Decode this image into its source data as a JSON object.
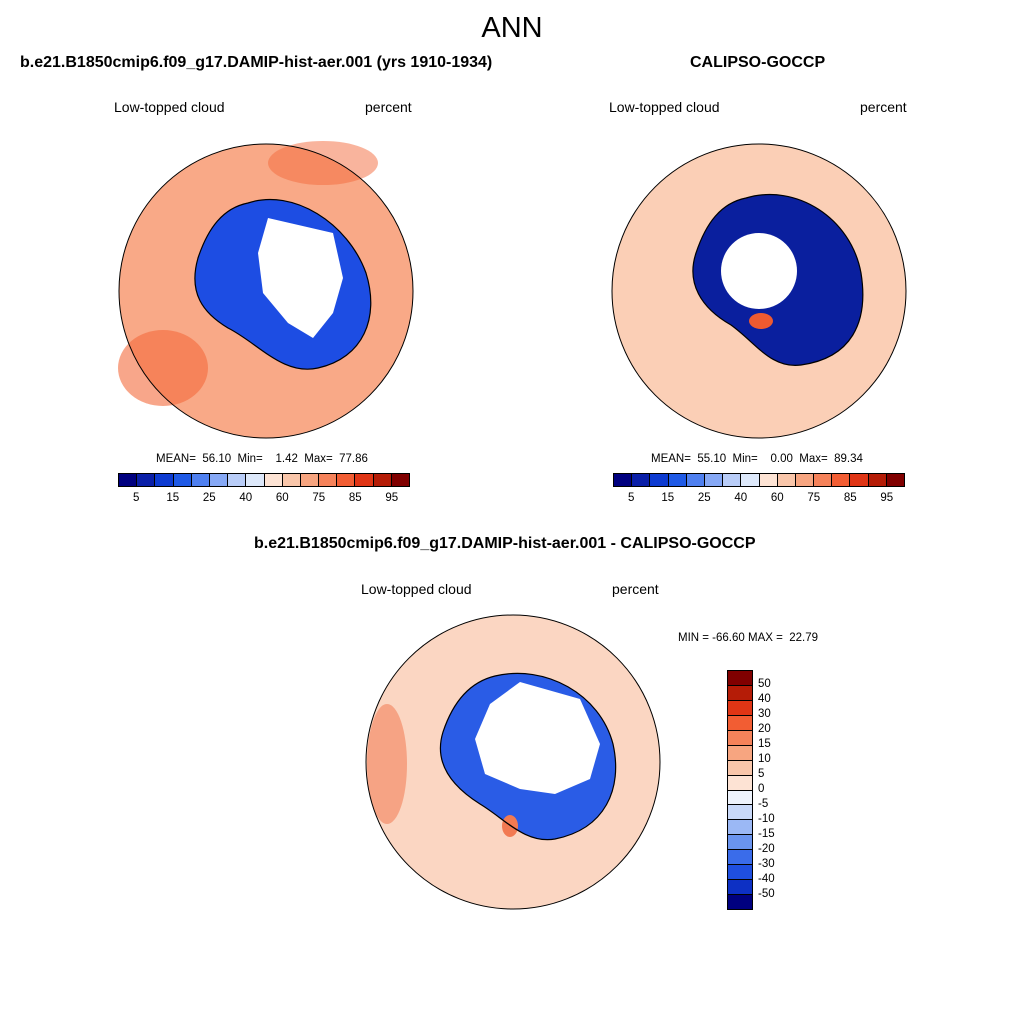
{
  "figure": {
    "title": "ANN"
  },
  "panels": [
    {
      "title": "b.e21.B1850cmip6.f09_g17.DAMIP-hist-aer.001 (yrs 1910-1934)",
      "left_label": "Low-topped cloud",
      "right_label": "percent",
      "stats": "MEAN=  56.10  Min=    1.42  Max=  77.86"
    },
    {
      "title": "CALIPSO-GOCCP",
      "left_label": "Low-topped cloud",
      "right_label": "percent",
      "stats": "MEAN=  55.10  Min=    0.00  Max=  89.34"
    },
    {
      "title": "b.e21.B1850cmip6.f09_g17.DAMIP-hist-aer.001 - CALIPSO-GOCCP",
      "left_label": "Low-topped cloud",
      "right_label": "percent",
      "stats": "MIN = -66.60 MAX =  22.79"
    }
  ],
  "colorbar_abs": {
    "colors": [
      "#00007f",
      "#0a1fa8",
      "#0d3bd1",
      "#1f5ae6",
      "#4f80f0",
      "#86a8f5",
      "#b9cdf8",
      "#dde8fa",
      "#fde3d4",
      "#f9c6aa",
      "#f7a580",
      "#f5825a",
      "#f25d33",
      "#e03515",
      "#b51c07",
      "#800000"
    ],
    "ticks": [
      "5",
      "15",
      "25",
      "40",
      "60",
      "75",
      "85",
      "95"
    ]
  },
  "colorbar_diff": {
    "colors": [
      "#800000",
      "#b51c07",
      "#e03515",
      "#f25d33",
      "#f5825a",
      "#f7a580",
      "#f9c6aa",
      "#fde3d4",
      "#eef3fc",
      "#c9d9f9",
      "#9bb8f5",
      "#6a94ef",
      "#3a6cea",
      "#1f4fe0",
      "#0d30c4",
      "#00007f"
    ],
    "ticks": [
      "50",
      "40",
      "30",
      "20",
      "15",
      "10",
      "5",
      "0",
      "-5",
      "-10",
      "-15",
      "-20",
      "-30",
      "-40",
      "-50"
    ]
  },
  "maps": [
    {
      "ocean_color": "#f9a987",
      "ring_color": "#1d4de3",
      "inner_color": "#ffffff",
      "accent_color": "#f36a3c"
    },
    {
      "ocean_color": "#fbcfb6",
      "ring_color": "#0a1f9e",
      "inner_color": "#ffffff",
      "accent_color": "#ee5a30"
    },
    {
      "ocean_color": "#fbd6c2",
      "ring_color": "#2a5ce6",
      "inner_color": "#ffffff",
      "accent_color": "#f27a52"
    }
  ]
}
